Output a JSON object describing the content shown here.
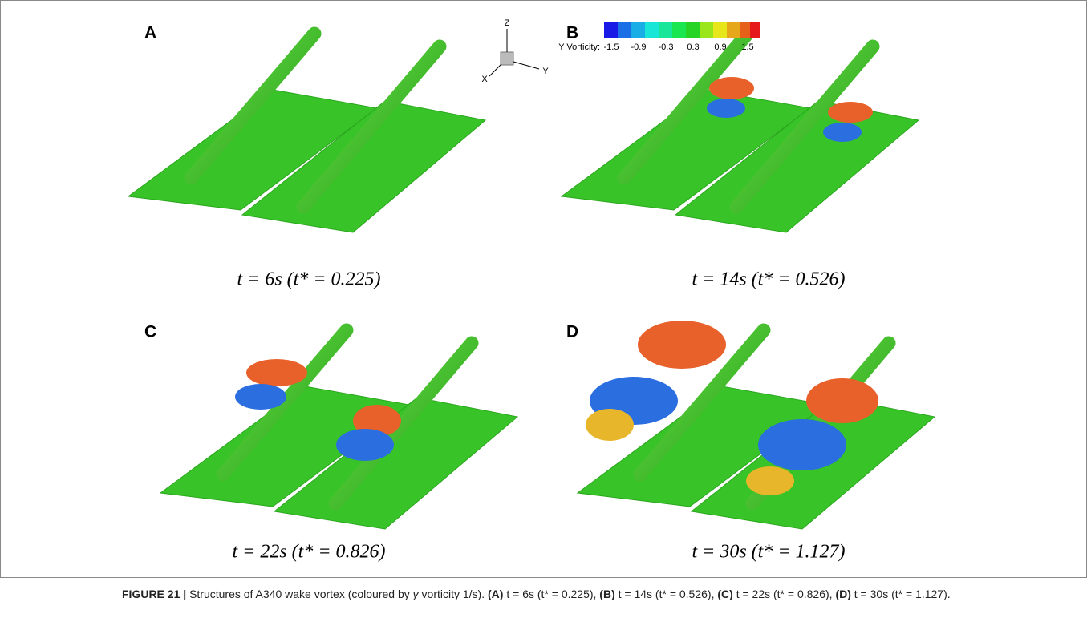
{
  "panels": [
    {
      "label": "A",
      "caption": "t = 6s (t* = 0.225)"
    },
    {
      "label": "B",
      "caption": "t = 14s (t* = 0.526)"
    },
    {
      "label": "C",
      "caption": "t = 22s (t* = 0.826)"
    },
    {
      "label": "D",
      "caption": "t = 30s (t* = 1.127)"
    }
  ],
  "colorbar": {
    "title": "Y Vorticity:",
    "ticks": [
      "-1.5",
      "-0.9",
      "-0.3",
      "0.3",
      "0.9",
      "1.5"
    ]
  },
  "axes_triad": {
    "z": "Z",
    "x": "X",
    "y": "Y"
  },
  "caption": {
    "label": "FIGURE 21 |",
    "segments": [
      {
        "text": "Structures of A340 wake vortex (coloured by ",
        "style": "normal"
      },
      {
        "text": "y",
        "style": "italic"
      },
      {
        "text": " vorticity 1/s). ",
        "style": "normal"
      },
      {
        "text": "(A)",
        "style": "bold"
      },
      {
        "text": " t = 6s (t* = 0.225), ",
        "style": "normal"
      },
      {
        "text": "(B)",
        "style": "bold"
      },
      {
        "text": " t = 14s (t* = 0.526), ",
        "style": "normal"
      },
      {
        "text": "(C)",
        "style": "bold"
      },
      {
        "text": " t = 22s (t* = 0.826), ",
        "style": "normal"
      },
      {
        "text": "(D)",
        "style": "bold"
      },
      {
        "text": " t = 30s (t* = 1.127).",
        "style": "normal"
      }
    ]
  }
}
